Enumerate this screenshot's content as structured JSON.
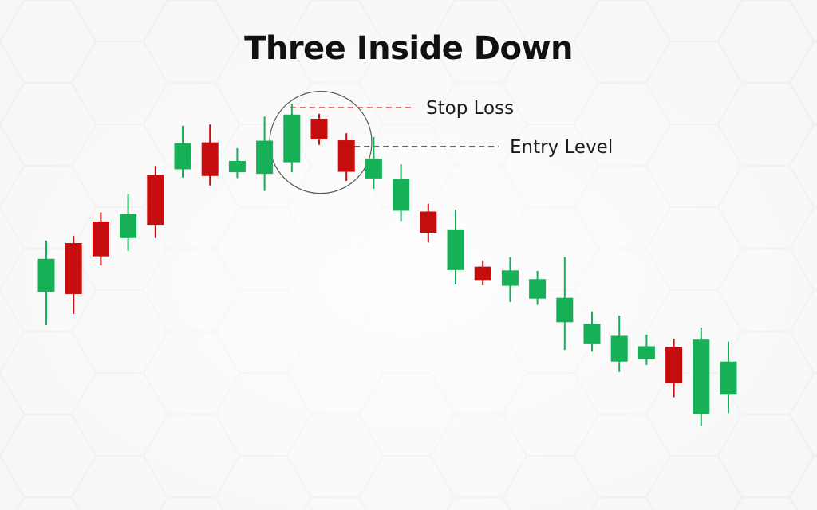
{
  "title": "Three Inside Down",
  "colors": {
    "bullish": "#16b157",
    "bearish": "#c50d0d",
    "stop_loss_line": "#d81b1b",
    "entry_line": "#333333",
    "highlight_circle": "#555555"
  },
  "chart_data": {
    "type": "candlestick",
    "title": "Three Inside Down",
    "xlabel": "",
    "ylabel": "",
    "ylim": [
      0,
      100
    ],
    "grid": false,
    "candles": [
      {
        "open": 50.7,
        "close": 58.7,
        "high": 63.1,
        "low": 42.7
      },
      {
        "open": 62.5,
        "close": 50.2,
        "high": 64.2,
        "low": 45.4
      },
      {
        "open": 67.7,
        "close": 59.3,
        "high": 69.9,
        "low": 57.1
      },
      {
        "open": 63.7,
        "close": 69.5,
        "high": 74.3,
        "low": 60.6
      },
      {
        "open": 78.9,
        "close": 66.9,
        "high": 81.1,
        "low": 63.7
      },
      {
        "open": 80.3,
        "close": 86.6,
        "high": 90.8,
        "low": 78.3
      },
      {
        "open": 86.8,
        "close": 78.7,
        "high": 91.1,
        "low": 76.4
      },
      {
        "open": 79.6,
        "close": 82.3,
        "high": 85.4,
        "low": 78.2
      },
      {
        "open": 79.2,
        "close": 87.2,
        "high": 93.0,
        "low": 75.1
      },
      {
        "open": 82.0,
        "close": 93.5,
        "high": 96.1,
        "low": 79.6
      },
      {
        "open": 92.5,
        "close": 87.5,
        "high": 93.7,
        "low": 86.2
      },
      {
        "open": 87.3,
        "close": 79.7,
        "high": 89.0,
        "low": 77.5
      },
      {
        "open": 78.1,
        "close": 82.9,
        "high": 88.1,
        "low": 75.6
      },
      {
        "open": 70.3,
        "close": 78.0,
        "high": 81.5,
        "low": 67.8
      },
      {
        "open": 70.1,
        "close": 65.0,
        "high": 72.0,
        "low": 62.6
      },
      {
        "open": 56.0,
        "close": 65.8,
        "high": 70.6,
        "low": 52.5
      },
      {
        "open": 56.8,
        "close": 53.6,
        "high": 58.3,
        "low": 52.3
      },
      {
        "open": 52.2,
        "close": 55.9,
        "high": 59.1,
        "low": 48.3
      },
      {
        "open": 49.1,
        "close": 53.8,
        "high": 55.8,
        "low": 47.6
      },
      {
        "open": 43.4,
        "close": 49.3,
        "high": 59.1,
        "low": 36.7
      },
      {
        "open": 38.1,
        "close": 43.0,
        "high": 46.0,
        "low": 36.3
      },
      {
        "open": 33.9,
        "close": 40.1,
        "high": 45.0,
        "low": 31.4
      },
      {
        "open": 34.5,
        "close": 37.6,
        "high": 40.4,
        "low": 33.1
      },
      {
        "open": 37.5,
        "close": 28.7,
        "high": 39.4,
        "low": 25.3
      },
      {
        "open": 21.2,
        "close": 39.2,
        "high": 42.1,
        "low": 18.4
      },
      {
        "open": 25.9,
        "close": 33.9,
        "high": 38.7,
        "low": 21.5
      }
    ],
    "annotations": [
      {
        "label": "Stop Loss",
        "level": 95.2,
        "from_candle": 9
      },
      {
        "label": "Entry Level",
        "level": 85.8,
        "from_candle": 11
      }
    ],
    "highlight_candles": [
      9,
      10,
      11
    ]
  }
}
